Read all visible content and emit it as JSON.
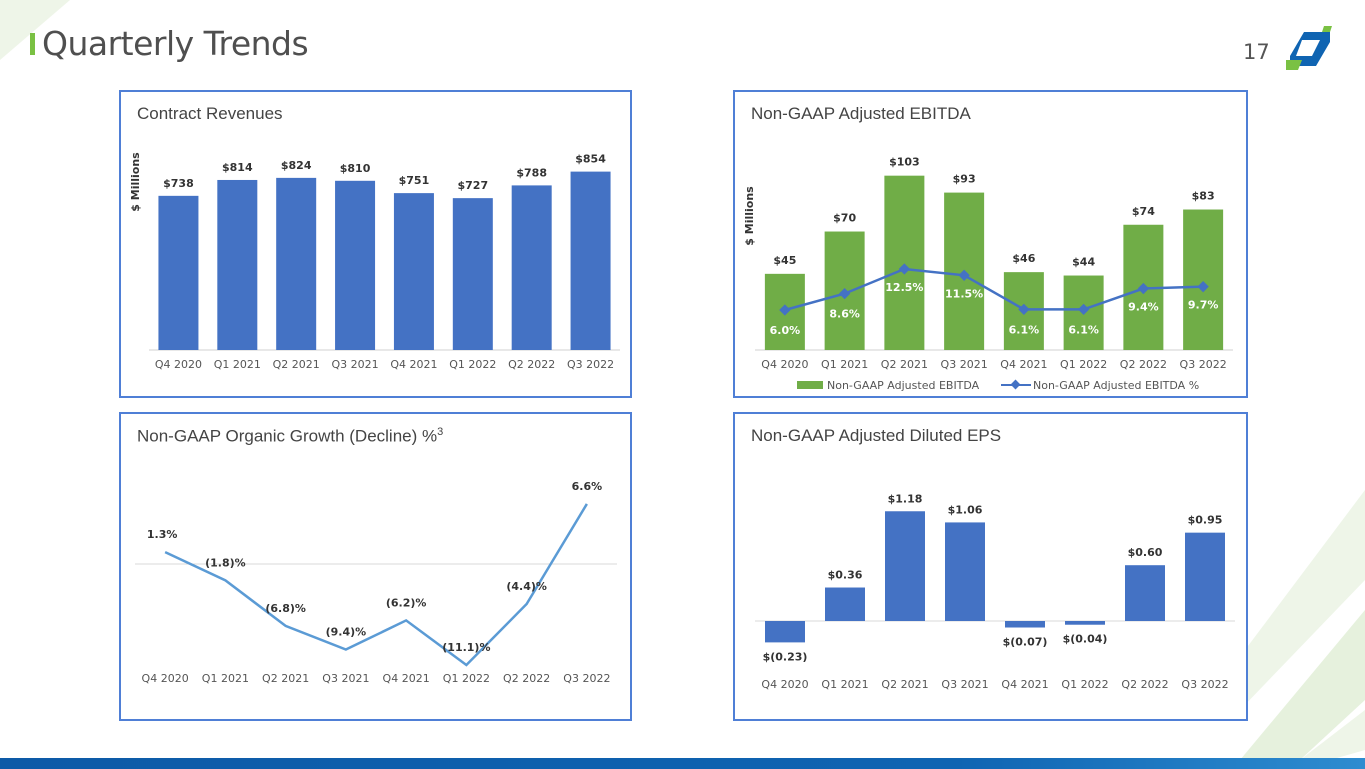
{
  "page": {
    "title": "Quarterly Trends",
    "page_number": "17",
    "colors": {
      "accent_green": "#7ac143",
      "brand_blue": "#0f64b2",
      "bar_blue": "#4472c4",
      "bar_green": "#70ad47",
      "line_blue": "#5b9bd5"
    }
  },
  "chart_data": [
    {
      "id": "contract_revenues",
      "type": "bar",
      "title": "Contract Revenues",
      "ylabel": "$ Millions",
      "categories": [
        "Q4 2020",
        "Q1 2021",
        "Q2 2021",
        "Q3 2021",
        "Q4 2021",
        "Q1 2022",
        "Q2 2022",
        "Q3 2022"
      ],
      "values": [
        738,
        814,
        824,
        810,
        751,
        727,
        788,
        854
      ],
      "labels": [
        "$738",
        "$814",
        "$824",
        "$810",
        "$751",
        "$727",
        "$788",
        "$854"
      ],
      "ylim": [
        0,
        900
      ]
    },
    {
      "id": "adjusted_ebitda",
      "type": "bar",
      "title": "Non-GAAP Adjusted EBITDA",
      "ylabel": "$ Millions",
      "categories": [
        "Q4 2020",
        "Q1 2021",
        "Q2 2021",
        "Q3 2021",
        "Q4 2021",
        "Q1 2022",
        "Q2 2022",
        "Q3 2022"
      ],
      "series": [
        {
          "name": "Non-GAAP Adjusted EBITDA",
          "type": "bar",
          "values": [
            45,
            70,
            103,
            93,
            46,
            44,
            74,
            83
          ],
          "labels": [
            "$45",
            "$70",
            "$103",
            "$93",
            "$46",
            "$44",
            "$74",
            "$83"
          ]
        },
        {
          "name": "Non-GAAP Adjusted EBITDA %",
          "type": "line",
          "values": [
            6.0,
            8.6,
            12.5,
            11.5,
            6.1,
            6.1,
            9.4,
            9.7
          ],
          "labels": [
            "6.0%",
            "8.6%",
            "12.5%",
            "11.5%",
            "6.1%",
            "6.1%",
            "9.4%",
            "9.7%"
          ]
        }
      ],
      "ylim": [
        0,
        110
      ]
    },
    {
      "id": "organic_growth",
      "type": "line",
      "title": "Non-GAAP Organic Growth (Decline) %",
      "title_superscript": "3",
      "categories": [
        "Q4 2020",
        "Q1 2021",
        "Q2 2021",
        "Q3 2021",
        "Q4 2021",
        "Q1 2022",
        "Q2 2022",
        "Q3 2022"
      ],
      "values": [
        1.3,
        -1.8,
        -6.8,
        -9.4,
        -6.2,
        -11.1,
        -4.4,
        6.6
      ],
      "labels": [
        "1.3%",
        "(1.8)%",
        "(6.8)%",
        "(9.4)%",
        "(6.2)%",
        "(11.1)%",
        "(4.4)%",
        "6.6%"
      ],
      "ylim": [
        -14,
        8
      ]
    },
    {
      "id": "adjusted_diluted_eps",
      "type": "bar",
      "title": "Non-GAAP Adjusted Diluted EPS",
      "categories": [
        "Q4 2020",
        "Q1 2021",
        "Q2 2021",
        "Q3 2021",
        "Q4 2021",
        "Q1 2022",
        "Q2 2022",
        "Q3 2022"
      ],
      "values": [
        -0.23,
        0.36,
        1.18,
        1.06,
        -0.07,
        -0.04,
        0.6,
        0.95
      ],
      "labels": [
        "$(0.23)",
        "$0.36",
        "$1.18",
        "$1.06",
        "$(0.07)",
        "$(0.04)",
        "$0.60",
        "$0.95"
      ],
      "ylim": [
        -0.4,
        1.3
      ]
    }
  ]
}
